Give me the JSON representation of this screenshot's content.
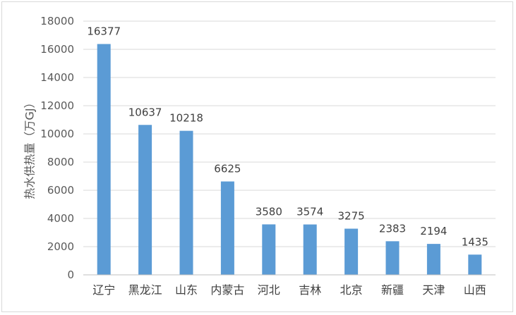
{
  "chart_data": {
    "type": "bar",
    "title": "",
    "xlabel": "",
    "ylabel": "热水供热量（万GJ）",
    "categories": [
      "辽宁",
      "黑龙江",
      "山东",
      "内蒙古",
      "河北",
      "吉林",
      "北京",
      "新疆",
      "天津",
      "山西"
    ],
    "values": [
      16377,
      10637,
      10218,
      6625,
      3580,
      3574,
      3275,
      2383,
      2194,
      1435
    ],
    "ylim": [
      0,
      18000
    ],
    "yticks": [
      0,
      2000,
      4000,
      6000,
      8000,
      10000,
      12000,
      14000,
      16000,
      18000
    ],
    "grid": true,
    "legend": "none",
    "data_labels": true,
    "colors": {
      "bar": "#5b9bd5",
      "grid": "#d9d9d9",
      "axis": "#bfbfbf"
    }
  }
}
